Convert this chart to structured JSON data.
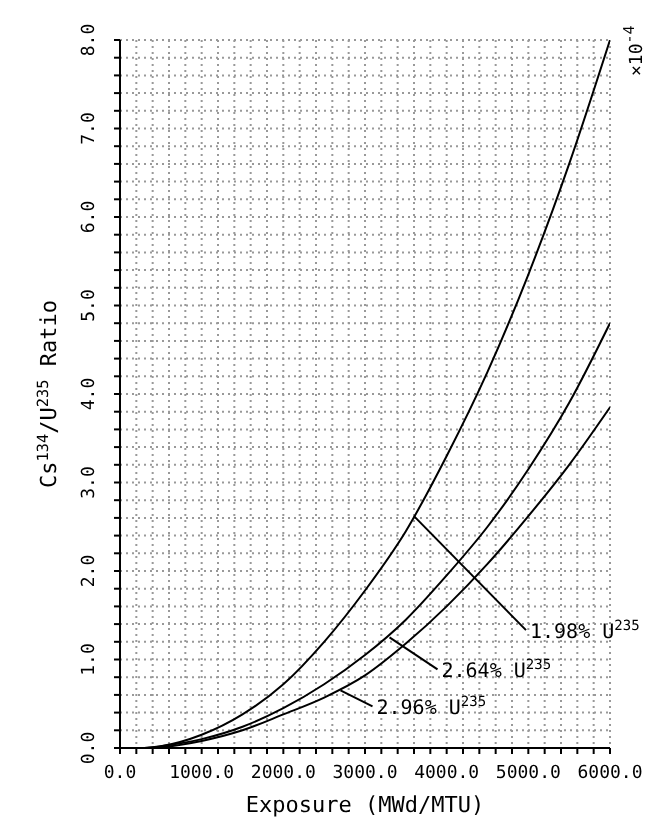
{
  "chart_data": {
    "type": "line",
    "xlabel": "Exposure  (MWd/MTU)",
    "ylabel": "Cs$^{134}$/U$^{235}$ Ratio",
    "x": [
      0,
      300,
      500,
      1000,
      1500,
      2000,
      2500,
      3000,
      3500,
      4000,
      4500,
      5000,
      5500,
      6000
    ],
    "series": [
      {
        "color": "#000000",
        "values": [
          0,
          0,
          0.02,
          0.15,
          0.38,
          0.72,
          1.2,
          1.78,
          2.45,
          3.3,
          4.25,
          5.35,
          6.6,
          8.0
        ]
      },
      {
        "color": "#000000",
        "values": [
          0,
          0,
          0.02,
          0.1,
          0.24,
          0.45,
          0.72,
          1.05,
          1.45,
          1.95,
          2.5,
          3.15,
          3.9,
          4.8
        ]
      },
      {
        "color": "#000000",
        "values": [
          0,
          0,
          0.01,
          0.08,
          0.2,
          0.38,
          0.57,
          0.82,
          1.18,
          1.6,
          2.08,
          2.62,
          3.2,
          3.85
        ]
      }
    ],
    "annotations": [
      "×10$^{-4}$",
      {
        "text": "1.98% U$^{235}$",
        "x": 3600,
        "y": 2.62
      },
      {
        "text": "2.64% U$^{235}$",
        "x": 3300,
        "y": 1.25
      },
      {
        "text": "2.96% U$^{235}$",
        "x": 2700,
        "y": 0.65
      }
    ],
    "xlim": [
      0,
      6000
    ],
    "xticks": [
      {
        "value": 0,
        "label": "0.0"
      },
      {
        "value": 200,
        "label": null
      },
      {
        "value": 400,
        "label": null
      },
      {
        "value": 600,
        "label": null
      },
      {
        "value": 800,
        "label": null
      },
      {
        "value": 1000,
        "label": "1000.0"
      },
      {
        "value": 1200,
        "label": null
      },
      {
        "value": 1400,
        "label": null
      },
      {
        "value": 1600,
        "label": null
      },
      {
        "value": 1800,
        "label": null
      },
      {
        "value": 2000,
        "label": "2000.0"
      },
      {
        "value": 2200,
        "label": null
      },
      {
        "value": 2400,
        "label": null
      },
      {
        "value": 2600,
        "label": null
      },
      {
        "value": 2800,
        "label": null
      },
      {
        "value": 3000,
        "label": "3000.0"
      },
      {
        "value": 3200,
        "label": null
      },
      {
        "value": 3400,
        "label": null
      },
      {
        "value": 3600,
        "label": null
      },
      {
        "value": 3800,
        "label": null
      },
      {
        "value": 4000,
        "label": "4000.0"
      },
      {
        "value": 4200,
        "label": null
      },
      {
        "value": 4400,
        "label": null
      },
      {
        "value": 4600,
        "label": null
      },
      {
        "value": 4800,
        "label": null
      },
      {
        "value": 5000,
        "label": "5000.0"
      },
      {
        "value": 5200,
        "label": null
      },
      {
        "value": 5400,
        "label": null
      },
      {
        "value": 5600,
        "label": null
      },
      {
        "value": 5800,
        "label": null
      },
      {
        "value": 6000,
        "label": "6000.0"
      }
    ],
    "ylim": [
      0,
      8
    ],
    "yticks": [
      {
        "value": 0,
        "label": "0.0"
      },
      {
        "value": 0.2,
        "label": null
      },
      {
        "value": 0.4,
        "label": null
      },
      {
        "value": 0.6,
        "label": null
      },
      {
        "value": 0.8,
        "label": null
      },
      {
        "value": 1,
        "label": "1.0"
      },
      {
        "value": 1.2,
        "label": null
      },
      {
        "value": 1.4,
        "label": null
      },
      {
        "value": 1.6,
        "label": null
      },
      {
        "value": 1.8,
        "label": null
      },
      {
        "value": 2,
        "label": "2.0"
      },
      {
        "value": 2.2,
        "label": null
      },
      {
        "value": 2.4,
        "label": null
      },
      {
        "value": 2.6,
        "label": null
      },
      {
        "value": 2.8,
        "label": null
      },
      {
        "value": 3,
        "label": "3.0"
      },
      {
        "value": 3.2,
        "label": null
      },
      {
        "value": 3.4,
        "label": null
      },
      {
        "value": 3.6,
        "label": null
      },
      {
        "value": 3.8,
        "label": null
      },
      {
        "value": 4,
        "label": "4.0"
      },
      {
        "value": 4.2,
        "label": null
      },
      {
        "value": 4.4,
        "label": null
      },
      {
        "value": 4.6,
        "label": null
      },
      {
        "value": 4.8,
        "label": null
      },
      {
        "value": 5,
        "label": "5.0"
      },
      {
        "value": 5.2,
        "label": null
      },
      {
        "value": 5.4,
        "label": null
      },
      {
        "value": 5.6,
        "label": null
      },
      {
        "value": 5.8,
        "label": null
      },
      {
        "value": 6,
        "label": "6.0"
      },
      {
        "value": 6.2,
        "label": null
      },
      {
        "value": 6.4,
        "label": null
      },
      {
        "value": 6.6,
        "label": null
      },
      {
        "value": 6.8,
        "label": null
      },
      {
        "value": 7,
        "label": "7.0"
      },
      {
        "value": 7.2,
        "label": null
      },
      {
        "value": 7.4,
        "label": null
      },
      {
        "value": 7.6,
        "label": null
      },
      {
        "value": 7.8,
        "label": null
      },
      {
        "value": 8,
        "label": "8.0"
      }
    ],
    "grid": true,
    "marker": "none",
    "line_style": "solid"
  }
}
